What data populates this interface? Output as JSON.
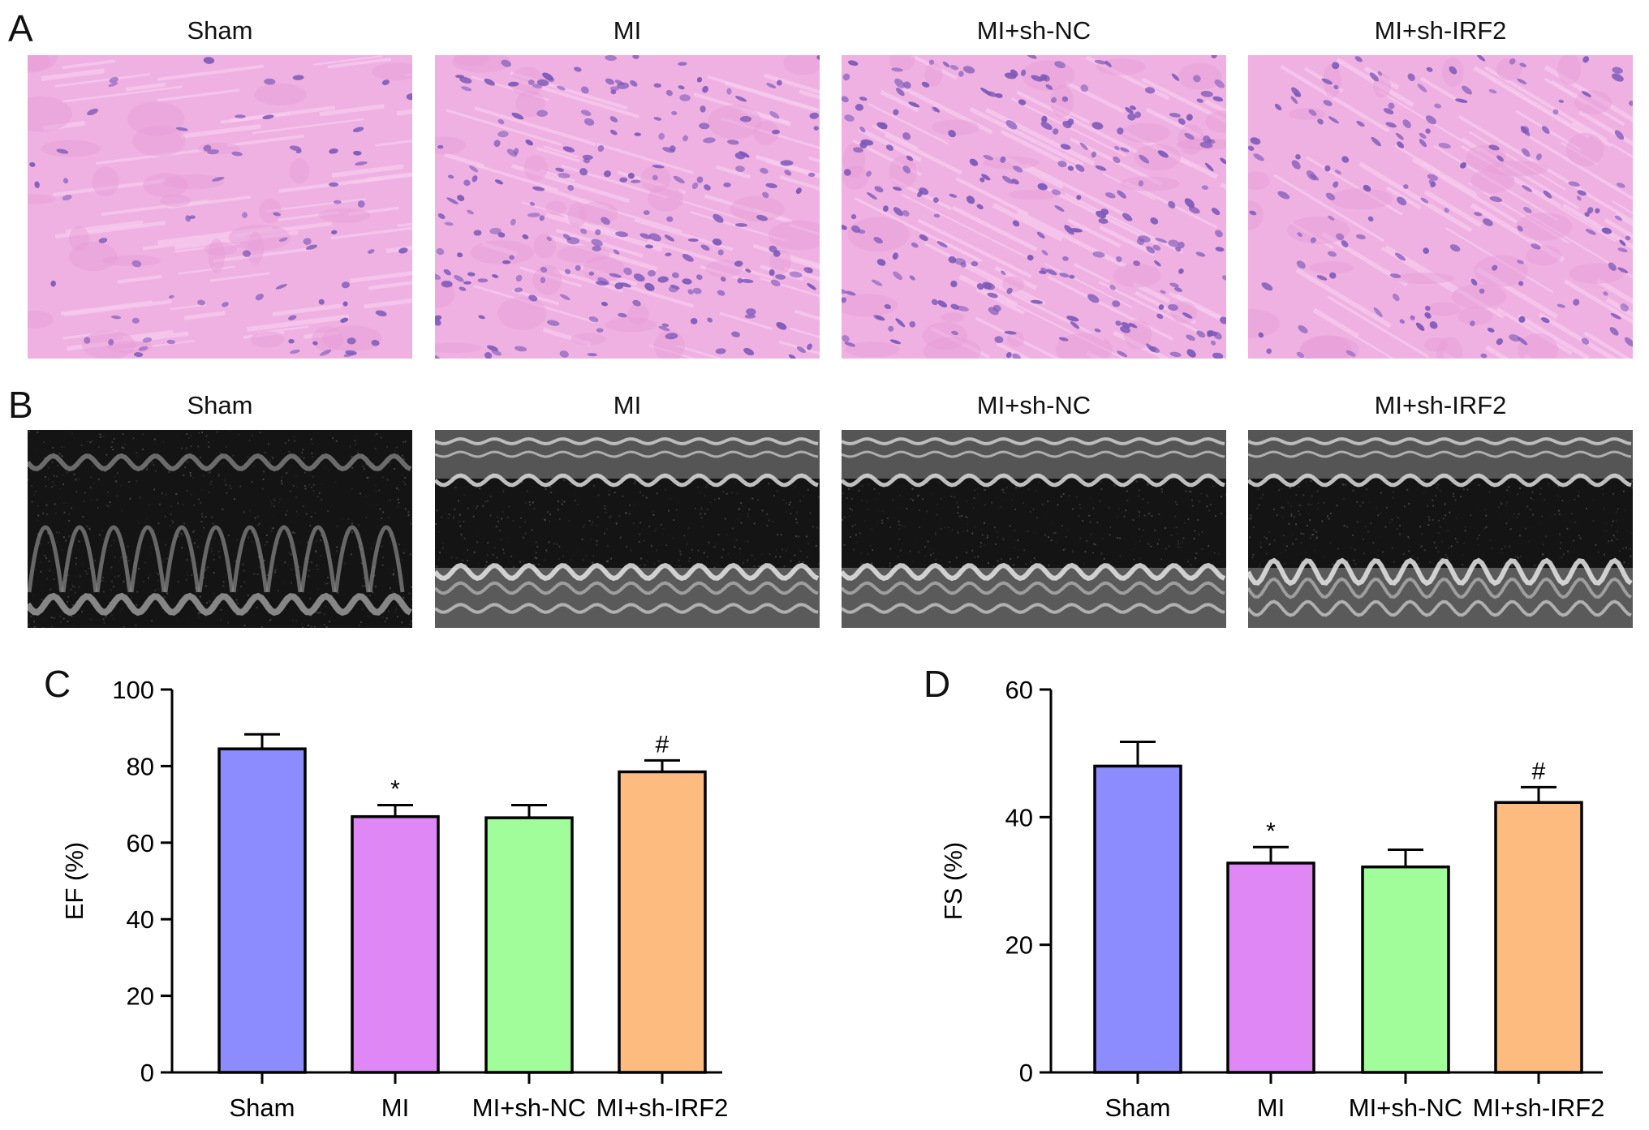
{
  "panels": {
    "a": {
      "letter": "A",
      "titles": [
        "Sham",
        "MI",
        "MI+sh-NC",
        "MI+sh-IRF2"
      ]
    },
    "b": {
      "letter": "B",
      "titles": [
        "Sham",
        "MI",
        "MI+sh-NC",
        "MI+sh-IRF2"
      ]
    },
    "c": {
      "letter": "C"
    },
    "d": {
      "letter": "D"
    }
  },
  "chart_data": [
    {
      "type": "bar",
      "categories": [
        "Sham",
        "MI",
        "MI+sh-NC",
        "MI+sh-IRF2"
      ],
      "values": [
        84.5,
        66.8,
        66.5,
        78.5
      ],
      "errors": [
        3.8,
        3.0,
        3.3,
        3.0
      ],
      "annotations": [
        "",
        "*",
        "",
        "#"
      ],
      "colors": [
        "#8c8cff",
        "#df88f5",
        "#a0fd9a",
        "#fdbb80"
      ],
      "xlabel": "",
      "ylabel": "EF (%)",
      "ylim": [
        0,
        100
      ],
      "yticks": [
        0,
        20,
        40,
        60,
        80,
        100
      ]
    },
    {
      "type": "bar",
      "categories": [
        "Sham",
        "MI",
        "MI+sh-NC",
        "MI+sh-IRF2"
      ],
      "values": [
        48,
        32.8,
        32.2,
        42.3
      ],
      "errors": [
        3.8,
        2.5,
        2.7,
        2.4
      ],
      "annotations": [
        "",
        "*",
        "",
        "#"
      ],
      "colors": [
        "#8c8cff",
        "#df88f5",
        "#a0fd9a",
        "#fdbb80"
      ],
      "xlabel": "",
      "ylabel": "FS (%)",
      "ylim": [
        0,
        60
      ],
      "yticks": [
        0,
        20,
        40,
        60
      ]
    }
  ]
}
